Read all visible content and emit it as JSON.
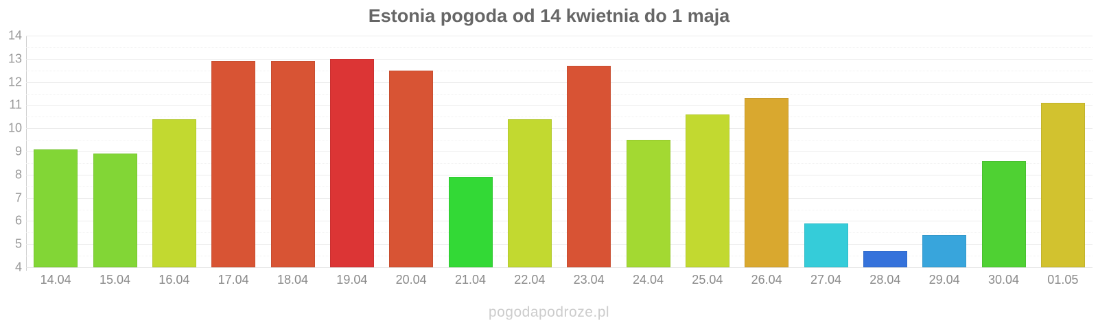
{
  "chart_data": {
    "type": "bar",
    "title": "Estonia pogoda od 14 kwietnia do 1 maja",
    "categories": [
      "14.04",
      "15.04",
      "16.04",
      "17.04",
      "18.04",
      "19.04",
      "20.04",
      "21.04",
      "22.04",
      "23.04",
      "24.04",
      "25.04",
      "26.04",
      "27.04",
      "28.04",
      "29.04",
      "30.04",
      "01.05"
    ],
    "values": [
      9.1,
      8.9,
      10.4,
      12.9,
      12.9,
      13.0,
      12.5,
      7.9,
      10.4,
      12.7,
      9.5,
      10.6,
      11.3,
      5.9,
      4.7,
      5.4,
      8.6,
      11.1
    ],
    "bar_colors": [
      "#82D636",
      "#82D636",
      "#C2D930",
      "#D85434",
      "#D85434",
      "#DC3535",
      "#D85434",
      "#33D936",
      "#C2D930",
      "#D85334",
      "#A3D932",
      "#C2D930",
      "#D9A82F",
      "#35CCD9",
      "#3572DB",
      "#38A5DC",
      "#4FD133",
      "#D2C22F"
    ],
    "xlabel": "",
    "ylabel": "",
    "ylim": [
      4,
      14
    ],
    "yticks": [
      4,
      5,
      6,
      7,
      8,
      9,
      10,
      11,
      12,
      13,
      14
    ],
    "grid": true,
    "legend": false
  },
  "watermark": "pogodapodroze.pl",
  "colors": {
    "title_text": "#666666",
    "axis_text": "#999999",
    "gridline": "#ececec",
    "watermark_text": "#cccccc",
    "background": "#ffffff"
  }
}
